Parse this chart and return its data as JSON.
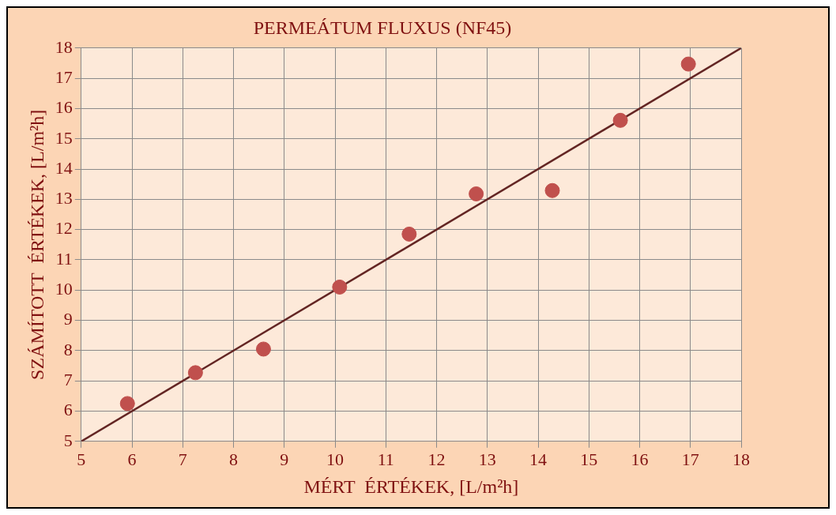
{
  "chart_data": {
    "type": "scatter",
    "title": "PERMEÁTUM FLUXUS (NF45)",
    "xlabel": "MÉRT  ÉRTÉKEK, [L/m²h]",
    "ylabel": "SZÁMÍTOTT  ÉRTÉKEK, [L/m²h]",
    "x": [
      5.91,
      7.25,
      8.59,
      10.09,
      11.46,
      12.78,
      14.28,
      15.62,
      16.96
    ],
    "series": [
      {
        "color": "#c0504d",
        "values": [
          6.25,
          7.27,
          8.05,
          10.1,
          11.85,
          13.18,
          13.29,
          15.61,
          17.47
        ]
      },
      {
        "type": "line",
        "marker": "none",
        "color": "#632523",
        "x": [
          5,
          18
        ],
        "values": [
          5,
          18
        ]
      }
    ],
    "xlim": [
      5,
      18
    ],
    "xticks": [
      5,
      6,
      7,
      8,
      9,
      10,
      11,
      12,
      13,
      14,
      15,
      16,
      17,
      18
    ],
    "ylim": [
      5,
      18
    ],
    "yticks": [
      5,
      6,
      7,
      8,
      9,
      10,
      11,
      12,
      13,
      14,
      15,
      16,
      17,
      18
    ],
    "grid": true,
    "legend": false,
    "marker": "circle"
  }
}
